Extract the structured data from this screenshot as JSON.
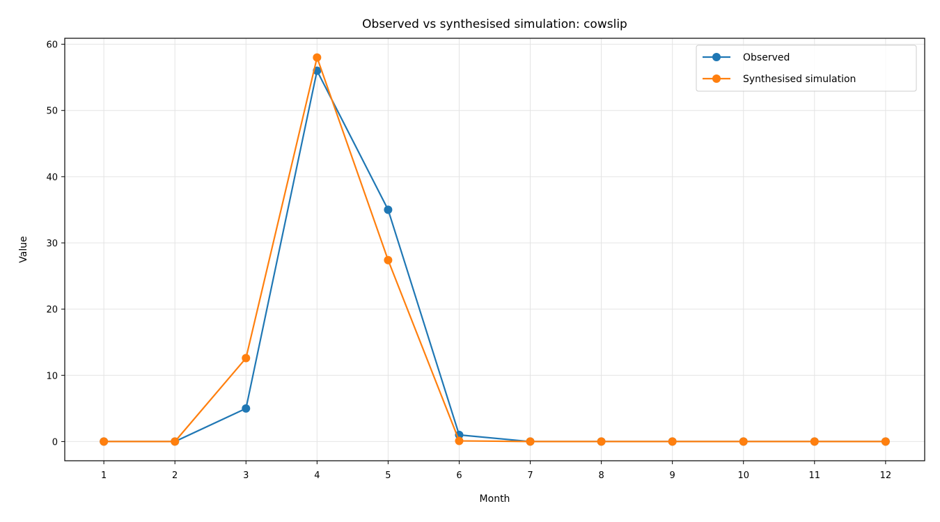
{
  "chart_data": {
    "type": "line",
    "title": "Observed vs synthesised simulation: cowslip",
    "xlabel": "Month",
    "ylabel": "Value",
    "x": [
      1,
      2,
      3,
      4,
      5,
      6,
      7,
      8,
      9,
      10,
      11,
      12
    ],
    "xlim": [
      0.45,
      12.55
    ],
    "ylim": [
      -2.9,
      60.9
    ],
    "yticks": [
      0,
      10,
      20,
      30,
      40,
      50,
      60
    ],
    "grid": true,
    "legend_position": "top-right",
    "series": [
      {
        "name": "Observed",
        "color": "#1f77b4",
        "marker": "circle",
        "values": [
          0,
          0,
          5,
          56,
          35,
          1,
          0,
          0,
          0,
          0,
          0,
          0
        ]
      },
      {
        "name": "Synthesised simulation",
        "color": "#ff7f0e",
        "marker": "circle",
        "values": [
          0,
          0,
          12.6,
          58,
          27.4,
          0.1,
          0,
          0,
          0,
          0,
          0,
          0
        ]
      }
    ]
  }
}
